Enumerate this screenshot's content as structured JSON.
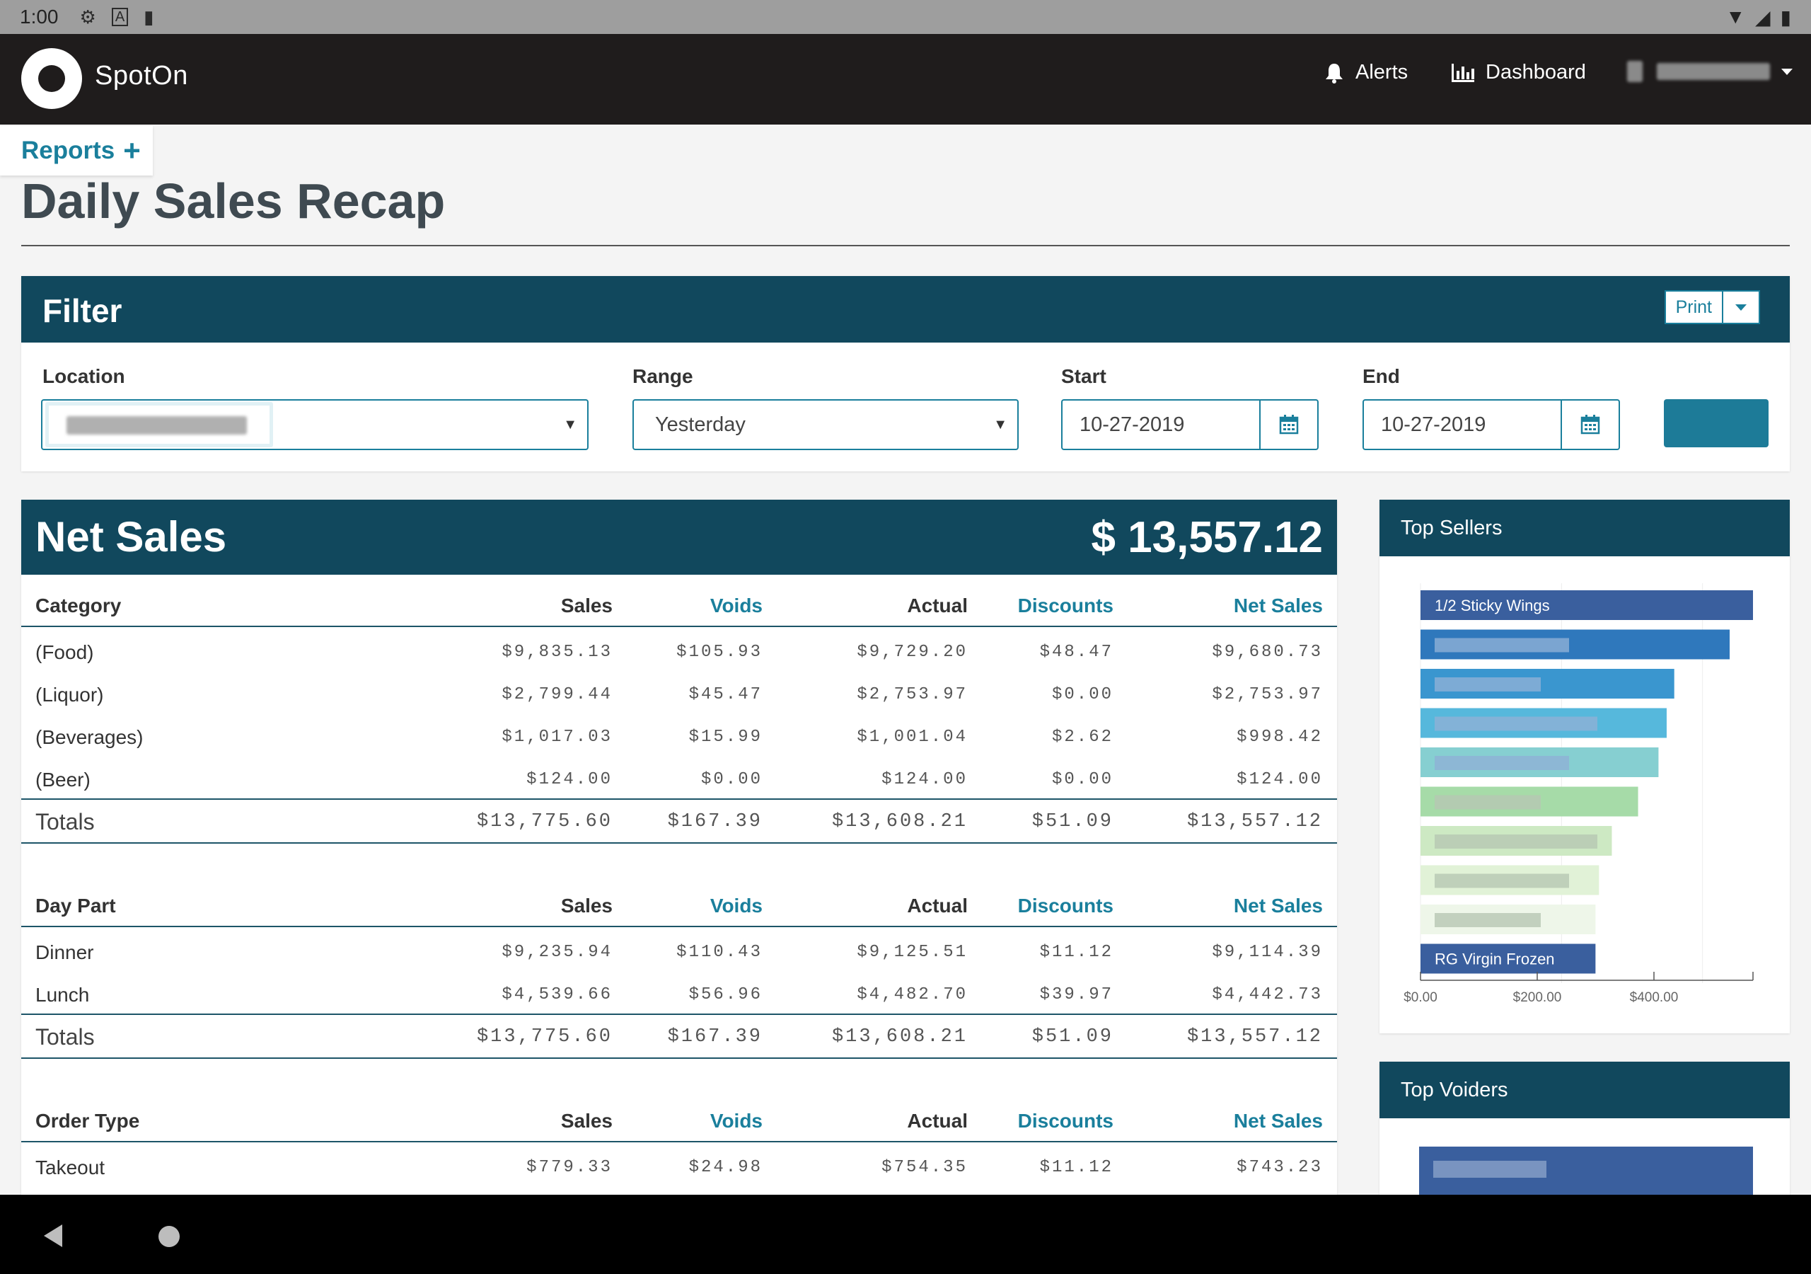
{
  "status_bar": {
    "time": "1:00",
    "icons": [
      "gear-icon",
      "font-icon",
      "sd-card-icon"
    ],
    "right_icons": [
      "wifi-icon",
      "signal-icon",
      "battery-icon"
    ]
  },
  "header": {
    "brand": "SpotOn",
    "nav": {
      "alerts": "Alerts",
      "dashboard": "Dashboard"
    }
  },
  "reports_tab": {
    "label": "Reports",
    "plus": "+"
  },
  "page_title": "Daily Sales Recap",
  "filter": {
    "title": "Filter",
    "print_label": "Print",
    "location_label": "Location",
    "range_label": "Range",
    "range_value": "Yesterday",
    "start_label": "Start",
    "start_value": "10-27-2019",
    "end_label": "End",
    "end_value": "10-27-2019"
  },
  "net_sales": {
    "title": "Net Sales",
    "total": "$ 13,557.12",
    "columns": [
      "Sales",
      "Voids",
      "Actual",
      "Discounts",
      "Net Sales"
    ],
    "sections": [
      {
        "heading": "Category",
        "rows": [
          {
            "name": "(Food)",
            "values": [
              "$9,835.13",
              "$105.93",
              "$9,729.20",
              "$48.47",
              "$9,680.73"
            ]
          },
          {
            "name": "(Liquor)",
            "values": [
              "$2,799.44",
              "$45.47",
              "$2,753.97",
              "$0.00",
              "$2,753.97"
            ]
          },
          {
            "name": "(Beverages)",
            "values": [
              "$1,017.03",
              "$15.99",
              "$1,001.04",
              "$2.62",
              "$998.42"
            ]
          },
          {
            "name": "(Beer)",
            "values": [
              "$124.00",
              "$0.00",
              "$124.00",
              "$0.00",
              "$124.00"
            ]
          }
        ],
        "totals": {
          "name": "Totals",
          "values": [
            "$13,775.60",
            "$167.39",
            "$13,608.21",
            "$51.09",
            "$13,557.12"
          ]
        }
      },
      {
        "heading": "Day Part",
        "rows": [
          {
            "name": "Dinner",
            "values": [
              "$9,235.94",
              "$110.43",
              "$9,125.51",
              "$11.12",
              "$9,114.39"
            ]
          },
          {
            "name": "Lunch",
            "values": [
              "$4,539.66",
              "$56.96",
              "$4,482.70",
              "$39.97",
              "$4,442.73"
            ]
          }
        ],
        "totals": {
          "name": "Totals",
          "values": [
            "$13,775.60",
            "$167.39",
            "$13,608.21",
            "$51.09",
            "$13,557.12"
          ]
        }
      },
      {
        "heading": "Order Type",
        "rows": [
          {
            "name": "Takeout",
            "values": [
              "$779.33",
              "$24.98",
              "$754.35",
              "$11.12",
              "$743.23"
            ]
          }
        ]
      }
    ]
  },
  "top_sellers": {
    "title": "Top Sellers",
    "chart_data": {
      "type": "bar",
      "orientation": "horizontal",
      "categories": [
        "1/2 Sticky Wings",
        "",
        "",
        "",
        "",
        "",
        "",
        "",
        "",
        "RG Virgin Frozen"
      ],
      "values": [
        570,
        530,
        435,
        422,
        408,
        373,
        328,
        306,
        300,
        300
      ],
      "colors": [
        "#3a5f9e",
        "#2f78bc",
        "#3a96cf",
        "#56b8dc",
        "#86cfd1",
        "#a6dba8",
        "#cde9c3",
        "#e1f2d7",
        "#eef6e9",
        "#3a5f9e"
      ],
      "xticks": [
        "$0.00",
        "$200.00",
        "$400.00"
      ],
      "xlim": [
        0,
        570
      ],
      "grid": true
    }
  },
  "top_voiders": {
    "title": "Top Voiders"
  }
}
